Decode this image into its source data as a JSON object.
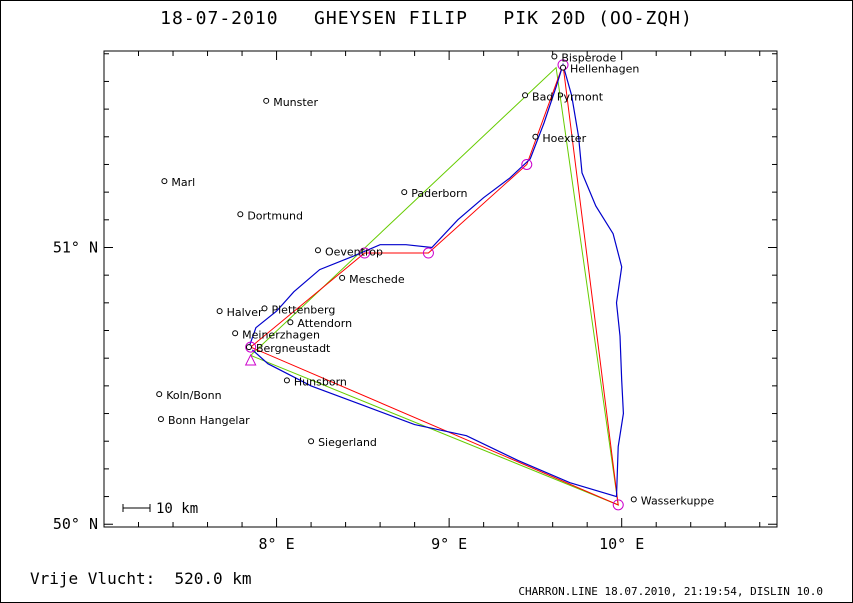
{
  "title": "18-07-2010   GHEYSEN FILIP   PIK 20D (OO-ZQH)",
  "footer": {
    "distance_label": "Vrije Vlucht:  520.0 km",
    "software_info": "CHARRON.LINE 18.07.2010, 21:19:54, DISLIN 10.0"
  },
  "scale_bar": {
    "label": "10 km",
    "km": 10
  },
  "colors": {
    "track": "#0000cc",
    "task_line": "#ff0000",
    "declared_line": "#66cc00",
    "turnpoint_marker": "#cc00cc"
  },
  "axes": {
    "lon_range": [
      7.0,
      10.9
    ],
    "lat_range": [
      49.99,
      51.71
    ],
    "x_ticks": [
      {
        "value": 8,
        "label": "8° E"
      },
      {
        "value": 9,
        "label": "9° E"
      },
      {
        "value": 10,
        "label": "10° E"
      }
    ],
    "y_ticks": [
      {
        "value": 50,
        "label": "50° N"
      },
      {
        "value": 51,
        "label": "51° N"
      }
    ]
  },
  "towns": [
    {
      "name": "Bisperode",
      "lon": 9.61,
      "lat": 51.69
    },
    {
      "name": "Hellenhagen",
      "lon": 9.66,
      "lat": 51.65
    },
    {
      "name": "Bad Pyrmont",
      "lon": 9.44,
      "lat": 51.55
    },
    {
      "name": "Munster",
      "lon": 7.94,
      "lat": 51.53
    },
    {
      "name": "Hoexter",
      "lon": 9.5,
      "lat": 51.4
    },
    {
      "name": "Marl",
      "lon": 7.35,
      "lat": 51.24
    },
    {
      "name": "Paderborn",
      "lon": 8.74,
      "lat": 51.2
    },
    {
      "name": "Dortmund",
      "lon": 7.79,
      "lat": 51.12
    },
    {
      "name": "Oeventrop",
      "lon": 8.24,
      "lat": 50.99
    },
    {
      "name": "Meschede",
      "lon": 8.38,
      "lat": 50.89
    },
    {
      "name": "Halver",
      "lon": 7.67,
      "lat": 50.77
    },
    {
      "name": "Plettenberg",
      "lon": 7.93,
      "lat": 50.78
    },
    {
      "name": "Attendorn",
      "lon": 8.08,
      "lat": 50.73
    },
    {
      "name": "Meinerzhagen",
      "lon": 7.76,
      "lat": 50.69
    },
    {
      "name": "Bergneustadt",
      "lon": 7.84,
      "lat": 50.64
    },
    {
      "name": "Hunsborn",
      "lon": 8.06,
      "lat": 50.52
    },
    {
      "name": "Koln/Bonn",
      "lon": 7.32,
      "lat": 50.47
    },
    {
      "name": "Bonn Hangelar",
      "lon": 7.33,
      "lat": 50.38
    },
    {
      "name": "Siegerland",
      "lon": 8.2,
      "lat": 50.3
    },
    {
      "name": "Wasserkuppe",
      "lon": 10.07,
      "lat": 50.09
    }
  ],
  "turnpoints": [
    {
      "lon": 7.85,
      "lat": 50.64
    },
    {
      "lon": 8.51,
      "lat": 50.98
    },
    {
      "lon": 8.88,
      "lat": 50.98
    },
    {
      "lon": 9.45,
      "lat": 51.3
    },
    {
      "lon": 9.66,
      "lat": 51.66
    },
    {
      "lon": 9.98,
      "lat": 50.07
    }
  ],
  "task_route": [
    {
      "lon": 7.85,
      "lat": 50.64
    },
    {
      "lon": 8.51,
      "lat": 50.98
    },
    {
      "lon": 8.88,
      "lat": 50.98
    },
    {
      "lon": 9.45,
      "lat": 51.3
    },
    {
      "lon": 9.66,
      "lat": 51.66
    },
    {
      "lon": 9.98,
      "lat": 50.07
    },
    {
      "lon": 7.85,
      "lat": 50.64
    }
  ],
  "declared_route": [
    {
      "lon": 7.85,
      "lat": 50.61
    },
    {
      "lon": 9.62,
      "lat": 51.65
    },
    {
      "lon": 9.98,
      "lat": 50.07
    },
    {
      "lon": 7.85,
      "lat": 50.61
    }
  ],
  "flight_track": [
    {
      "lon": 7.84,
      "lat": 50.64
    },
    {
      "lon": 7.88,
      "lat": 50.71
    },
    {
      "lon": 8.0,
      "lat": 50.77
    },
    {
      "lon": 8.1,
      "lat": 50.84
    },
    {
      "lon": 8.25,
      "lat": 50.92
    },
    {
      "lon": 8.45,
      "lat": 50.97
    },
    {
      "lon": 8.6,
      "lat": 51.01
    },
    {
      "lon": 8.75,
      "lat": 51.01
    },
    {
      "lon": 8.9,
      "lat": 51.0
    },
    {
      "lon": 9.05,
      "lat": 51.1
    },
    {
      "lon": 9.2,
      "lat": 51.18
    },
    {
      "lon": 9.35,
      "lat": 51.25
    },
    {
      "lon": 9.47,
      "lat": 51.32
    },
    {
      "lon": 9.55,
      "lat": 51.45
    },
    {
      "lon": 9.62,
      "lat": 51.58
    },
    {
      "lon": 9.66,
      "lat": 51.66
    },
    {
      "lon": 9.71,
      "lat": 51.55
    },
    {
      "lon": 9.75,
      "lat": 51.4
    },
    {
      "lon": 9.77,
      "lat": 51.27
    },
    {
      "lon": 9.85,
      "lat": 51.15
    },
    {
      "lon": 9.95,
      "lat": 51.05
    },
    {
      "lon": 10.0,
      "lat": 50.93
    },
    {
      "lon": 9.97,
      "lat": 50.8
    },
    {
      "lon": 9.99,
      "lat": 50.68
    },
    {
      "lon": 10.0,
      "lat": 50.52
    },
    {
      "lon": 10.01,
      "lat": 50.4
    },
    {
      "lon": 9.98,
      "lat": 50.28
    },
    {
      "lon": 9.97,
      "lat": 50.1
    },
    {
      "lon": 9.7,
      "lat": 50.15
    },
    {
      "lon": 9.4,
      "lat": 50.23
    },
    {
      "lon": 9.1,
      "lat": 50.32
    },
    {
      "lon": 8.8,
      "lat": 50.36
    },
    {
      "lon": 8.5,
      "lat": 50.43
    },
    {
      "lon": 8.2,
      "lat": 50.5
    },
    {
      "lon": 7.95,
      "lat": 50.58
    },
    {
      "lon": 7.86,
      "lat": 50.63
    }
  ],
  "start_marker": {
    "lon": 7.85,
    "lat": 50.59
  }
}
